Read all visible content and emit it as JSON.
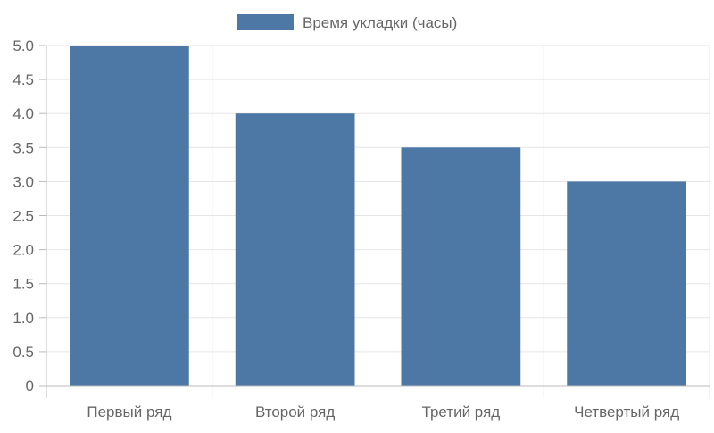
{
  "chart_data": {
    "type": "bar",
    "categories": [
      "Первый ряд",
      "Второй ряд",
      "Третий ряд",
      "Четвертый ряд"
    ],
    "series": [
      {
        "name": "Время укладки (часы)",
        "values": [
          5,
          4,
          3.5,
          3
        ],
        "color": "#4d78a6"
      }
    ],
    "title": "",
    "xlabel": "",
    "ylabel": "",
    "ylim": [
      0,
      5
    ],
    "yticks": [
      "0",
      "0.5",
      "1.0",
      "1.5",
      "2.0",
      "2.5",
      "3.0",
      "3.5",
      "4.0",
      "4.5",
      "5.0"
    ],
    "grid": true,
    "legend": "top"
  }
}
